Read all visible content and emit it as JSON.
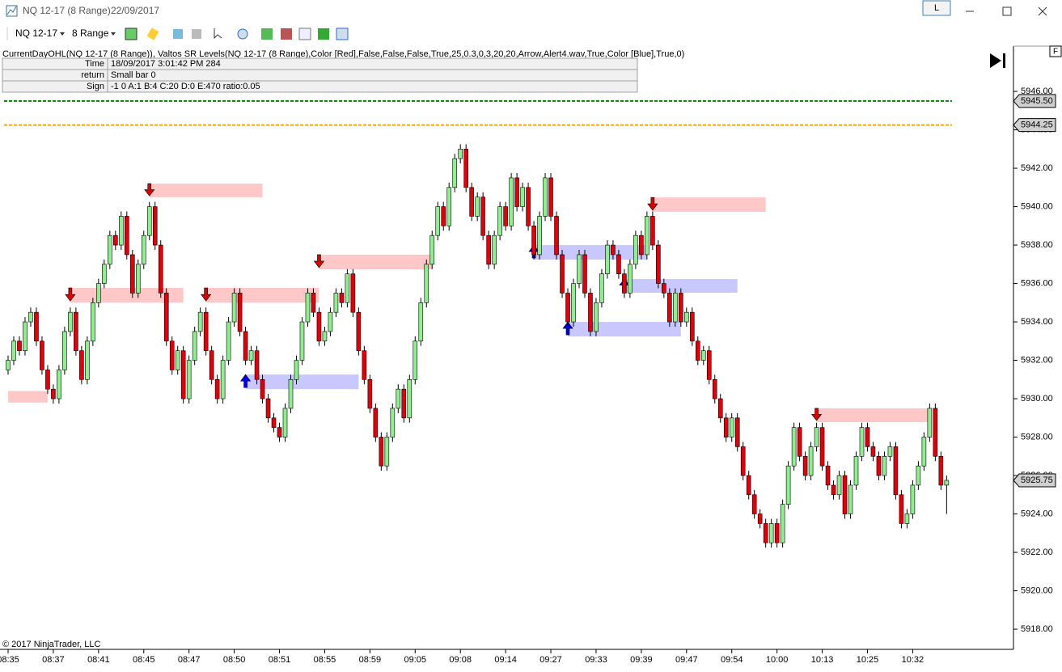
{
  "window": {
    "title": "NQ 12-17 (8 Range)",
    "date": "22/09/2017",
    "button": "L"
  },
  "toolbar": {
    "instrument": "NQ 12-17",
    "period": "8 Range"
  },
  "indicator": {
    "label": "CurrentDayOHL(NQ 12-17 (8 Range)), Valtos SR Levels(NQ 12-17 (8 Range),Color [Red],False,False,False,True,25,0.3,0,3,20,20,Arrow,Alert4.wav,True,Color [Blue],True,0)",
    "rows": [
      [
        "Time",
        "18/09/2017 3:01:42 PM 284"
      ],
      [
        "return",
        "Small bar 0"
      ],
      [
        "Sign",
        "-1 0 A:1 B:4 C:20 D:0 E:470 ratio:0.05"
      ]
    ]
  },
  "corner_box": "F",
  "copyright": "© 2017 NinjaTrader, LLC",
  "chart_data": {
    "type": "candlestick",
    "up_color": "#90ee90",
    "down_color": "#e0000b",
    "ylim": [
      5916.95,
      5948.36
    ],
    "yticks": [
      {
        "value": 5918,
        "label": "5918.00"
      },
      {
        "value": 5920,
        "label": "5920.00"
      },
      {
        "value": 5922,
        "label": "5922.00"
      },
      {
        "value": 5924,
        "label": "5924.00"
      },
      {
        "value": 5926,
        "label": "5926.00"
      },
      {
        "value": 5928,
        "label": "5928.00"
      },
      {
        "value": 5930,
        "label": "5930.00"
      },
      {
        "value": 5932,
        "label": "5932.00"
      },
      {
        "value": 5934,
        "label": "5934.00"
      },
      {
        "value": 5936,
        "label": "5936.00"
      },
      {
        "value": 5938,
        "label": "5938.00"
      },
      {
        "value": 5940,
        "label": "5940.00"
      },
      {
        "value": 5942,
        "label": "5942.00"
      },
      {
        "value": 5944,
        "label": "5944.00"
      },
      {
        "value": 5946,
        "label": "5946.00"
      }
    ],
    "categories": [
      "08:35",
      null,
      null,
      null,
      null,
      null,
      null,
      null,
      "08:37",
      null,
      null,
      null,
      null,
      null,
      null,
      null,
      "08:41",
      null,
      null,
      null,
      null,
      null,
      null,
      null,
      "08:45",
      null,
      null,
      null,
      null,
      null,
      null,
      null,
      "08:47",
      null,
      null,
      null,
      null,
      null,
      null,
      null,
      "08:50",
      null,
      null,
      null,
      null,
      null,
      null,
      null,
      "08:51",
      null,
      null,
      null,
      null,
      null,
      null,
      null,
      "08:55",
      null,
      null,
      null,
      null,
      null,
      null,
      null,
      "08:59",
      null,
      null,
      null,
      null,
      null,
      null,
      null,
      "09:05",
      null,
      null,
      null,
      null,
      null,
      null,
      null,
      "09:08",
      null,
      null,
      null,
      null,
      null,
      null,
      null,
      "09:14",
      null,
      null,
      null,
      null,
      null,
      null,
      null,
      "09:27",
      null,
      null,
      null,
      null,
      null,
      null,
      null,
      "09:33",
      null,
      null,
      null,
      null,
      null,
      null,
      null,
      "09:39",
      null,
      null,
      null,
      null,
      null,
      null,
      null,
      "09:47",
      null,
      null,
      null,
      null,
      null,
      null,
      null,
      "09:54",
      null,
      null,
      null,
      null,
      null,
      null,
      null,
      "10:00",
      null,
      null,
      null,
      null,
      null,
      null,
      null,
      "10:13",
      null,
      null,
      null,
      null,
      null,
      null,
      null,
      "10:25",
      null,
      null,
      null,
      null,
      null,
      null,
      null,
      "10:32",
      null,
      null,
      null,
      null,
      null,
      null
    ],
    "open": [
      5931.5,
      5932,
      5933,
      5932.5,
      5934,
      5934.5,
      5933,
      5931.5,
      5930.5,
      5930,
      5931.5,
      5933.5,
      5934.5,
      5932.5,
      5931,
      5933,
      5935,
      5936,
      5937,
      5938.5,
      5938,
      5939.5,
      5937.5,
      5935.5,
      5937,
      5938.5,
      5940,
      5938,
      5935.5,
      5933,
      5931.5,
      5932.5,
      5930,
      5932,
      5933.5,
      5934.5,
      5932.5,
      5931,
      5930,
      5932,
      5934,
      5935.5,
      5933.5,
      5932,
      5932.5,
      5931,
      5930,
      5929,
      5928.5,
      5928,
      5929.5,
      5931,
      5932,
      5934,
      5935.5,
      5934.5,
      5933,
      5933.5,
      5934.5,
      5935.5,
      5935,
      5936.5,
      5934.5,
      5932.5,
      5931,
      5929.5,
      5928,
      5926.5,
      5928,
      5929.5,
      5930.5,
      5929,
      5931,
      5933,
      5935,
      5937,
      5938.5,
      5940,
      5939,
      5941,
      5942.5,
      5943,
      5941,
      5939.5,
      5940.5,
      5938.5,
      5937,
      5938.5,
      5940,
      5939,
      5941.5,
      5940,
      5941,
      5939,
      5937.5,
      5939.5,
      5941.5,
      5939.5,
      5937.5,
      5935.5,
      5934,
      5936,
      5937.5,
      5935.5,
      5933.5,
      5935,
      5936.5,
      5938,
      5937.5,
      5936.5,
      5935.5,
      5937,
      5938.5,
      5937.5,
      5939.5,
      5938,
      5936,
      5935.5,
      5934,
      5935.5,
      5934,
      5934.5,
      5933,
      5932,
      5932.5,
      5931,
      5930,
      5929,
      5928,
      5929,
      5927.5,
      5926,
      5925,
      5924,
      5923.5,
      5922.5,
      5923.5,
      5922.5,
      5924.5,
      5926.5,
      5928.5,
      5927,
      5926,
      5927.5,
      5928.5,
      5926.5,
      5925.5,
      5925,
      5926,
      5924,
      5925.5,
      5927,
      5928.5,
      5927.5,
      5927,
      5926,
      5927,
      5927.5,
      5925,
      5923.5,
      5924,
      5925.5,
      5926.5,
      5928,
      5929.5,
      5927,
      5925.5
    ],
    "high": [
      5932.25,
      5933.25,
      5933.25,
      5934.25,
      5934.75,
      5934.75,
      5933.25,
      5931.75,
      5930.75,
      5931.75,
      5933.75,
      5934.75,
      5934.75,
      5932.75,
      5933.25,
      5935.25,
      5936.25,
      5937.25,
      5938.75,
      5938.75,
      5939.75,
      5939.75,
      5937.75,
      5937.25,
      5938.75,
      5940.25,
      5940.25,
      5938.25,
      5935.75,
      5933.25,
      5932.75,
      5932.75,
      5932.25,
      5933.75,
      5934.75,
      5934.75,
      5932.75,
      5931.25,
      5932.25,
      5934.25,
      5935.75,
      5935.75,
      5933.75,
      5932.75,
      5932.75,
      5931.25,
      5930.25,
      5929.25,
      5928.75,
      5929.75,
      5931.25,
      5932.25,
      5934.25,
      5935.75,
      5935.75,
      5934.75,
      5933.75,
      5934.75,
      5935.75,
      5935.75,
      5936.75,
      5936.75,
      5934.75,
      5932.75,
      5931.25,
      5929.75,
      5928.25,
      5928.25,
      5929.75,
      5930.75,
      5930.75,
      5931.25,
      5933.25,
      5935.25,
      5937.25,
      5938.75,
      5940.25,
      5940.25,
      5941.25,
      5942.75,
      5943.25,
      5943.25,
      5941.25,
      5940.75,
      5940.75,
      5938.75,
      5938.75,
      5940.25,
      5940.25,
      5941.75,
      5941.75,
      5941.25,
      5941.25,
      5939.25,
      5939.75,
      5941.75,
      5941.75,
      5939.75,
      5937.75,
      5935.75,
      5936.25,
      5937.75,
      5937.75,
      5935.75,
      5935.25,
      5936.75,
      5938.25,
      5938.25,
      5937.75,
      5936.75,
      5937.25,
      5938.75,
      5938.75,
      5939.75,
      5939.75,
      5938.25,
      5936.25,
      5935.75,
      5935.75,
      5935.75,
      5934.75,
      5934.75,
      5933.25,
      5932.75,
      5932.75,
      5931.25,
      5930.25,
      5929.25,
      5929.25,
      5929.25,
      5927.75,
      5926.25,
      5925.25,
      5924.25,
      5923.75,
      5923.75,
      5923.75,
      5924.75,
      5926.75,
      5928.75,
      5928.75,
      5927.25,
      5927.75,
      5928.75,
      5928.75,
      5926.75,
      5925.75,
      5926.25,
      5926.25,
      5925.75,
      5927.25,
      5928.75,
      5928.75,
      5927.75,
      5927.25,
      5927.25,
      5927.75,
      5927.75,
      5925.25,
      5924.25,
      5925.75,
      5926.75,
      5928.25,
      5929.75,
      5929.75,
      5927.25,
      5926
    ],
    "low": [
      5931.25,
      5931.75,
      5932.25,
      5932.25,
      5933.75,
      5932.75,
      5931.25,
      5930.25,
      5929.75,
      5929.75,
      5931.25,
      5933.25,
      5932.25,
      5930.75,
      5930.75,
      5932.75,
      5934.75,
      5935.75,
      5936.75,
      5937.75,
      5937.75,
      5937.25,
      5935.25,
      5935.25,
      5936.75,
      5938.25,
      5937.75,
      5935.25,
      5932.75,
      5931.25,
      5931.25,
      5929.75,
      5929.75,
      5931.75,
      5933.25,
      5932.25,
      5930.75,
      5929.75,
      5929.75,
      5931.75,
      5933.75,
      5933.25,
      5931.75,
      5931.75,
      5930.75,
      5929.75,
      5928.75,
      5928.25,
      5927.75,
      5927.75,
      5929.25,
      5930.75,
      5931.75,
      5933.75,
      5934.25,
      5932.75,
      5932.75,
      5933.25,
      5934.25,
      5934.75,
      5934.75,
      5934.25,
      5932.25,
      5930.75,
      5929.25,
      5927.75,
      5926.25,
      5926.25,
      5927.75,
      5929.25,
      5928.75,
      5928.75,
      5930.75,
      5932.75,
      5934.75,
      5936.75,
      5938.25,
      5938.75,
      5938.75,
      5940.75,
      5942.25,
      5940.75,
      5939.25,
      5939.25,
      5938.25,
      5936.75,
      5936.75,
      5938.25,
      5938.75,
      5938.75,
      5939.75,
      5939.75,
      5938.75,
      5937.25,
      5937.25,
      5939.25,
      5939.25,
      5937.25,
      5935.25,
      5933.75,
      5933.75,
      5935.75,
      5935.25,
      5933.25,
      5933.25,
      5934.75,
      5936.25,
      5937.25,
      5936.25,
      5935.25,
      5935.25,
      5936.75,
      5937.25,
      5937.25,
      5937.75,
      5935.75,
      5935.25,
      5933.75,
      5933.75,
      5933.75,
      5933.75,
      5932.75,
      5931.75,
      5931.75,
      5930.75,
      5929.75,
      5928.75,
      5927.75,
      5927.75,
      5927.25,
      5925.75,
      5924.75,
      5923.75,
      5923.25,
      5922.25,
      5922.25,
      5922.25,
      5922.25,
      5924.25,
      5926.25,
      5926.75,
      5925.75,
      5925.75,
      5927.25,
      5926.25,
      5925.25,
      5924.75,
      5924.75,
      5923.75,
      5923.75,
      5925.25,
      5926.75,
      5927.25,
      5926.75,
      5925.75,
      5925.75,
      5926.75,
      5924.75,
      5923.25,
      5923.25,
      5923.75,
      5925.25,
      5926.25,
      5927.75,
      5926.75,
      5925.25,
      5924
    ],
    "close": [
      5932,
      5933,
      5932.5,
      5934,
      5934.5,
      5933,
      5931.5,
      5930.5,
      5930,
      5931.5,
      5933.5,
      5934.5,
      5932.5,
      5931,
      5933,
      5935,
      5936,
      5937,
      5938.5,
      5938,
      5939.5,
      5937.5,
      5935.5,
      5937,
      5938.5,
      5940,
      5938,
      5935.5,
      5933,
      5931.5,
      5932.5,
      5930,
      5932,
      5933.5,
      5934.5,
      5932.5,
      5931,
      5930,
      5932,
      5934,
      5935.5,
      5933.5,
      5932,
      5932.5,
      5931,
      5930,
      5929,
      5928.5,
      5928,
      5929.5,
      5931,
      5932,
      5934,
      5935.5,
      5934.5,
      5933,
      5933.5,
      5934.5,
      5935.5,
      5935,
      5936.5,
      5934.5,
      5932.5,
      5931,
      5929.5,
      5928,
      5926.5,
      5928,
      5929.5,
      5930.5,
      5929,
      5931,
      5933,
      5935,
      5937,
      5938.5,
      5940,
      5939,
      5941,
      5942.5,
      5943,
      5941,
      5939.5,
      5940.5,
      5938.5,
      5937,
      5938.5,
      5940,
      5939,
      5941.5,
      5940,
      5941,
      5939,
      5937.5,
      5939.5,
      5941.5,
      5939.5,
      5937.5,
      5935.5,
      5934,
      5936,
      5937.5,
      5935.5,
      5933.5,
      5935,
      5936.5,
      5938,
      5937.5,
      5936.5,
      5935.5,
      5937,
      5938.5,
      5937.5,
      5939.5,
      5938,
      5936,
      5935.5,
      5934,
      5935.5,
      5934,
      5934.5,
      5933,
      5932,
      5932.5,
      5931,
      5930,
      5929,
      5928,
      5929,
      5927.5,
      5926,
      5925,
      5924,
      5923.5,
      5922.5,
      5923.5,
      5922.5,
      5924.5,
      5926.5,
      5928.5,
      5927,
      5926,
      5927.5,
      5928.5,
      5926.5,
      5925.5,
      5925,
      5926,
      5924,
      5925.5,
      5927,
      5928.5,
      5927.5,
      5927,
      5926,
      5927,
      5927.5,
      5925,
      5923.5,
      5924,
      5925.5,
      5926.5,
      5928,
      5929.5,
      5927,
      5925.5,
      5925.75
    ],
    "zones": [
      {
        "start": 0,
        "end": 7,
        "top": 5930.4,
        "bottom": 5929.8,
        "color": "#ffc8c8"
      },
      {
        "start": 11,
        "end": 31,
        "top": 5935.77,
        "bottom": 5935.0,
        "color": "#ffc8c8",
        "arrow": "down"
      },
      {
        "start": 25,
        "end": 45,
        "top": 5941.2,
        "bottom": 5940.48,
        "color": "#ffc8c8",
        "arrow": "down"
      },
      {
        "start": 35,
        "end": 55,
        "top": 5935.77,
        "bottom": 5935.0,
        "color": "#ffc8c8",
        "arrow": "down"
      },
      {
        "start": 42,
        "end": 62,
        "top": 5931.26,
        "bottom": 5930.5,
        "color": "#c8c8ff",
        "arrow": "up"
      },
      {
        "start": 55,
        "end": 75,
        "top": 5937.5,
        "bottom": 5936.74,
        "color": "#ffc8c8",
        "arrow": "down"
      },
      {
        "start": 93,
        "end": 113,
        "top": 5938.0,
        "bottom": 5937.24,
        "color": "#c8c8ff",
        "arrow": "up"
      },
      {
        "start": 99,
        "end": 119,
        "top": 5934.0,
        "bottom": 5933.24,
        "color": "#c8c8ff",
        "arrow": "up"
      },
      {
        "start": 109,
        "end": 129,
        "top": 5936.23,
        "bottom": 5935.52,
        "color": "#c8c8ff",
        "arrow": "up"
      },
      {
        "start": 114,
        "end": 134,
        "top": 5940.48,
        "bottom": 5939.73,
        "color": "#ffc8c8",
        "arrow": "down"
      },
      {
        "start": 143,
        "end": 163,
        "top": 5929.5,
        "bottom": 5928.78,
        "color": "#ffc8c8",
        "arrow": "down"
      }
    ],
    "price_lines": [
      {
        "value": 5945.5,
        "label": "5945.50",
        "color": "#008000"
      },
      {
        "value": 5944.25,
        "label": "5944.25",
        "color": "#ffa500"
      }
    ],
    "last_price": {
      "value": 5925.75,
      "label": "5925.75"
    }
  }
}
